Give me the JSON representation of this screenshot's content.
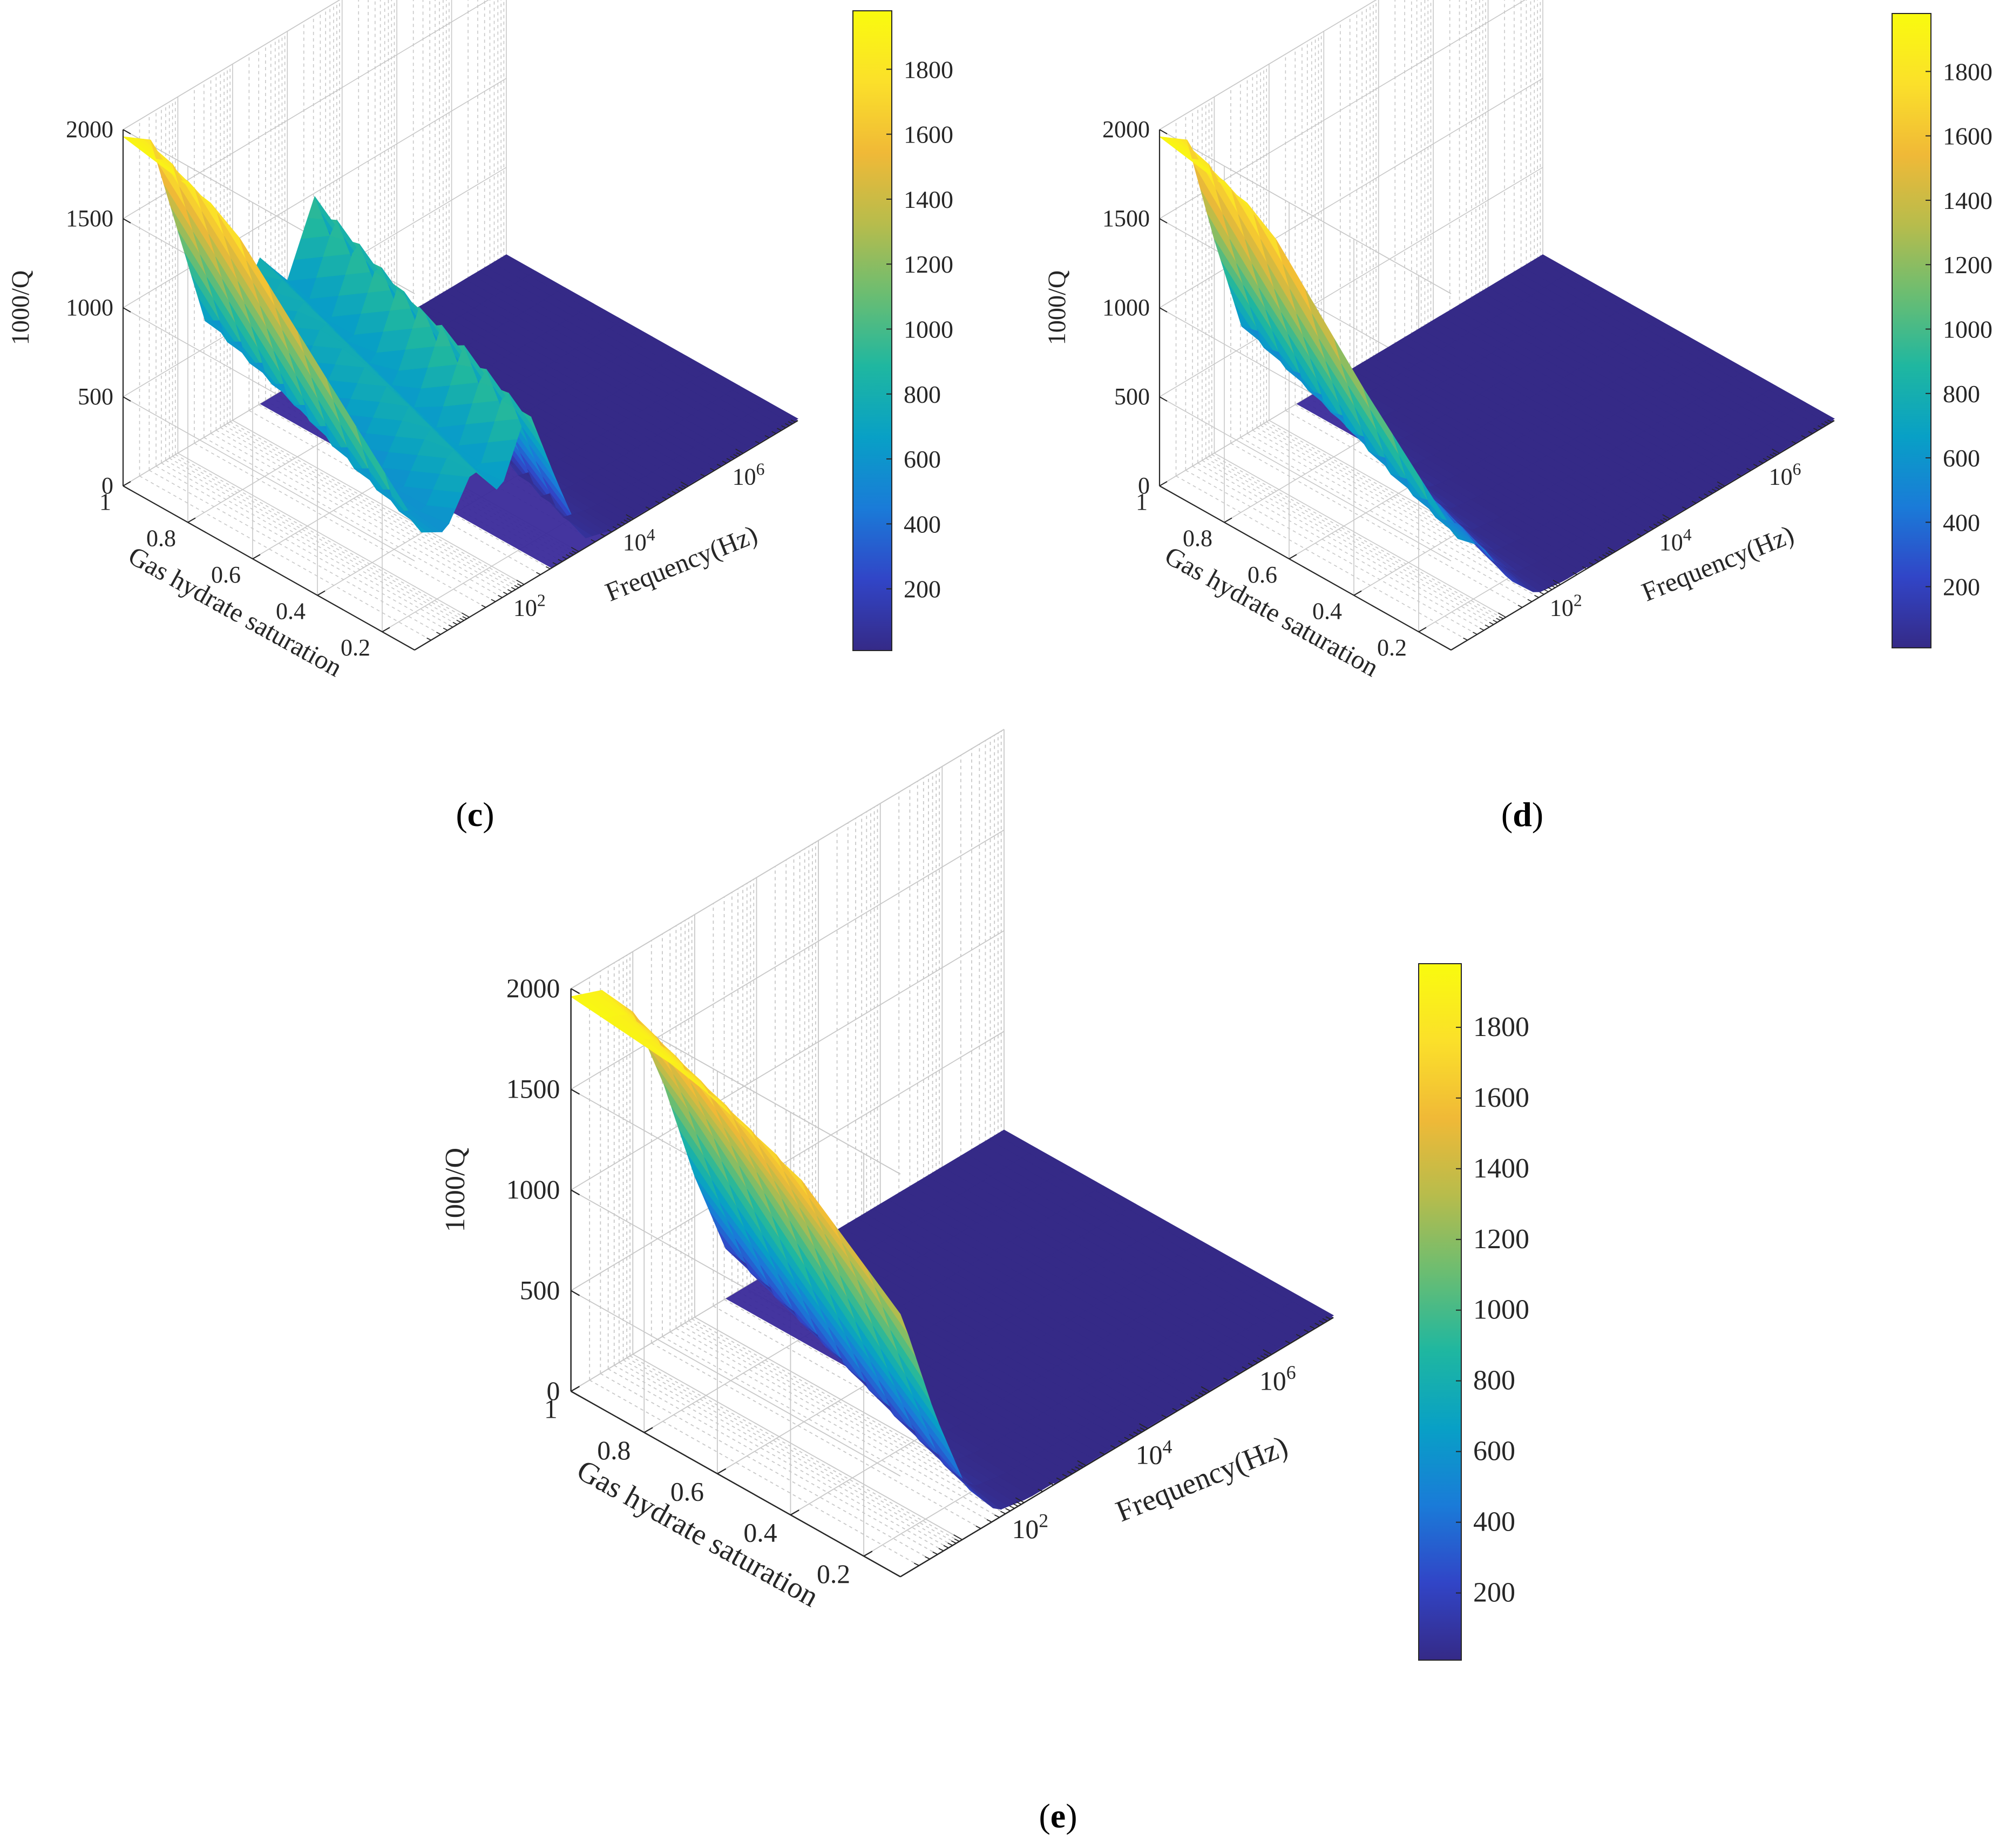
{
  "figure": {
    "panels": [
      {
        "label_open": "(",
        "label_letter": "c",
        "label_close": ")"
      },
      {
        "label_open": "(",
        "label_letter": "d",
        "label_close": ")"
      },
      {
        "label_open": "(",
        "label_letter": "e",
        "label_close": ")"
      }
    ]
  },
  "colors": {
    "parula": [
      "#352a87",
      "#3145c7",
      "#1a7bd8",
      "#08a0c6",
      "#1fb7a0",
      "#6abd72",
      "#b7bc4c",
      "#f0b937",
      "#fbe02a",
      "#f9fb0e"
    ],
    "floor": "#3a2a9a",
    "grid": "#c8c8c8",
    "axis": "#262626"
  },
  "chart_data": [
    {
      "type": "surface",
      "panel": "c",
      "zlabel": "1000/Q",
      "xlabel": "Gas hydrate saturation",
      "ylabel": "Frequency(Hz)",
      "z_ticks": [
        "0",
        "500",
        "1000",
        "1500",
        "2000"
      ],
      "z_tick_values": [
        0,
        500,
        1000,
        1500,
        2000
      ],
      "zlim": [
        0,
        2000
      ],
      "sat_ticks": [
        "1",
        "0.8",
        "0.6",
        "0.4",
        "0.2"
      ],
      "sat_tick_values": [
        1,
        0.8,
        0.6,
        0.4,
        0.2
      ],
      "xlim": [
        0.1,
        1
      ],
      "freq_tick_base": "10",
      "freq_tick_exps": [
        "2",
        "4",
        "6"
      ],
      "freq_tick_values": [
        2,
        4,
        6
      ],
      "ylim_log10": [
        0,
        7
      ],
      "colorbar_ticks": [
        "200",
        "400",
        "600",
        "800",
        "1000",
        "1200",
        "1400",
        "1600",
        "1800"
      ],
      "colorbar_values": [
        200,
        400,
        600,
        800,
        1000,
        1200,
        1400,
        1600,
        1800
      ],
      "clim": [
        10,
        1980
      ],
      "front_edge_freq_log10": [
        0,
        0.5,
        1,
        1.5,
        2,
        2.5,
        3,
        3.5,
        4,
        4.5,
        5,
        5.5,
        6,
        6.5,
        7
      ],
      "front_edge_value": [
        1960,
        1850,
        1250,
        650,
        560,
        820,
        600,
        980,
        500,
        60,
        15,
        10,
        10,
        10,
        10
      ]
    },
    {
      "type": "surface",
      "panel": "d",
      "zlabel": "1000/Q",
      "xlabel": "Gas hydrate saturation",
      "ylabel": "Frequency(Hz)",
      "z_ticks": [
        "0",
        "500",
        "1000",
        "1500",
        "2000"
      ],
      "z_tick_values": [
        0,
        500,
        1000,
        1500,
        2000
      ],
      "zlim": [
        0,
        2000
      ],
      "sat_ticks": [
        "1",
        "0.8",
        "0.6",
        "0.4",
        "0.2"
      ],
      "sat_tick_values": [
        1,
        0.8,
        0.6,
        0.4,
        0.2
      ],
      "xlim": [
        0.1,
        1
      ],
      "freq_tick_base": "10",
      "freq_tick_exps": [
        "2",
        "4",
        "6"
      ],
      "freq_tick_values": [
        2,
        4,
        6
      ],
      "ylim_log10": [
        0,
        7
      ],
      "colorbar_ticks": [
        "200",
        "400",
        "600",
        "800",
        "1000",
        "1200",
        "1400",
        "1600",
        "1800"
      ],
      "colorbar_values": [
        200,
        400,
        600,
        800,
        1000,
        1200,
        1400,
        1600,
        1800
      ],
      "clim": [
        10,
        1980
      ],
      "front_edge_freq_log10": [
        0,
        0.5,
        1,
        1.5,
        2,
        2.5,
        3,
        3.5,
        4,
        4.5,
        5,
        5.5,
        6,
        6.5,
        7
      ],
      "front_edge_value": [
        1960,
        1850,
        1200,
        620,
        480,
        200,
        30,
        10,
        10,
        10,
        10,
        10,
        10,
        10,
        10
      ]
    },
    {
      "type": "surface",
      "panel": "e",
      "zlabel": "1000/Q",
      "xlabel": "Gas hydrate saturation",
      "ylabel": "Frequency(Hz)",
      "z_ticks": [
        "0",
        "500",
        "1000",
        "1500",
        "2000"
      ],
      "z_tick_values": [
        0,
        500,
        1000,
        1500,
        2000
      ],
      "zlim": [
        0,
        2000
      ],
      "sat_ticks": [
        "1",
        "0.8",
        "0.6",
        "0.4",
        "0.2"
      ],
      "sat_tick_values": [
        1,
        0.8,
        0.6,
        0.4,
        0.2
      ],
      "xlim": [
        0.1,
        1
      ],
      "freq_tick_base": "10",
      "freq_tick_exps": [
        "2",
        "4",
        "6"
      ],
      "freq_tick_values": [
        2,
        4,
        6
      ],
      "ylim_log10": [
        0,
        7
      ],
      "colorbar_ticks": [
        "200",
        "400",
        "600",
        "800",
        "1000",
        "1200",
        "1400",
        "1600",
        "1800"
      ],
      "colorbar_values": [
        200,
        400,
        600,
        800,
        1000,
        1200,
        1400,
        1600,
        1800
      ],
      "clim": [
        10,
        1980
      ],
      "front_edge_freq_log10": [
        0,
        0.5,
        1,
        1.5,
        2,
        2.5,
        3,
        3.5,
        4,
        4.5,
        5,
        5.5,
        6,
        6.5,
        7
      ],
      "front_edge_value": [
        1960,
        1900,
        1700,
        1250,
        700,
        250,
        40,
        10,
        10,
        10,
        10,
        10,
        10,
        10,
        10
      ]
    }
  ]
}
